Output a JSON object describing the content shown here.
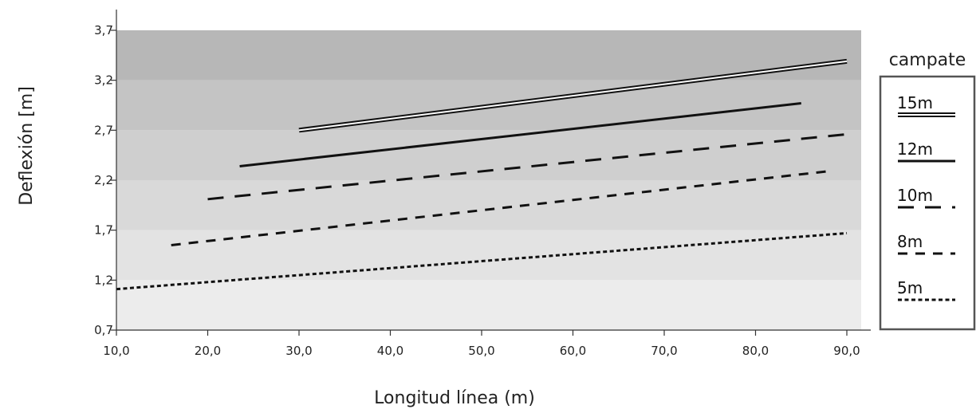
{
  "chart_data": {
    "type": "line",
    "title": "",
    "xlabel": "Longitud línea (m)",
    "ylabel": "Deflexión [m]",
    "xlim": [
      10,
      92
    ],
    "ylim": [
      0.7,
      3.7
    ],
    "x_ticks": [
      10,
      20,
      30,
      40,
      50,
      60,
      70,
      80,
      90
    ],
    "x_tick_labels": [
      "10,0",
      "20,0",
      "30,0",
      "40,0",
      "50,0",
      "60,0",
      "70,0",
      "80,0",
      "90,0"
    ],
    "y_ticks": [
      0.7,
      1.2,
      1.7,
      2.2,
      2.7,
      3.2,
      3.7
    ],
    "y_tick_labels": [
      "0,7",
      "1,2",
      "1,7",
      "2,2",
      "2,7",
      "3,2",
      "3,7"
    ],
    "background_bands": [
      {
        "from": 0.7,
        "to": 1.2,
        "color": "#ececec"
      },
      {
        "from": 1.2,
        "to": 1.7,
        "color": "#e3e3e3"
      },
      {
        "from": 1.7,
        "to": 2.2,
        "color": "#d9d9d9"
      },
      {
        "from": 2.2,
        "to": 2.7,
        "color": "#cfcfcf"
      },
      {
        "from": 2.7,
        "to": 3.2,
        "color": "#c4c4c4"
      },
      {
        "from": 3.2,
        "to": 3.7,
        "color": "#b7b7b7"
      }
    ],
    "grid": false,
    "legend": {
      "title": "campate",
      "position": "right"
    },
    "series": [
      {
        "name": "15m",
        "style": "double",
        "x": [
          30,
          90
        ],
        "y": [
          2.7,
          3.39
        ]
      },
      {
        "name": "12m",
        "style": "solid",
        "x": [
          23.5,
          85
        ],
        "y": [
          2.34,
          2.97
        ]
      },
      {
        "name": "10m",
        "style": "long-dash",
        "x": [
          20,
          90
        ],
        "y": [
          2.01,
          2.66
        ]
      },
      {
        "name": "8m",
        "style": "dash",
        "x": [
          16,
          88
        ],
        "y": [
          1.55,
          2.29
        ]
      },
      {
        "name": "5m",
        "style": "dot",
        "x": [
          10,
          90
        ],
        "y": [
          1.11,
          1.67
        ]
      }
    ]
  }
}
